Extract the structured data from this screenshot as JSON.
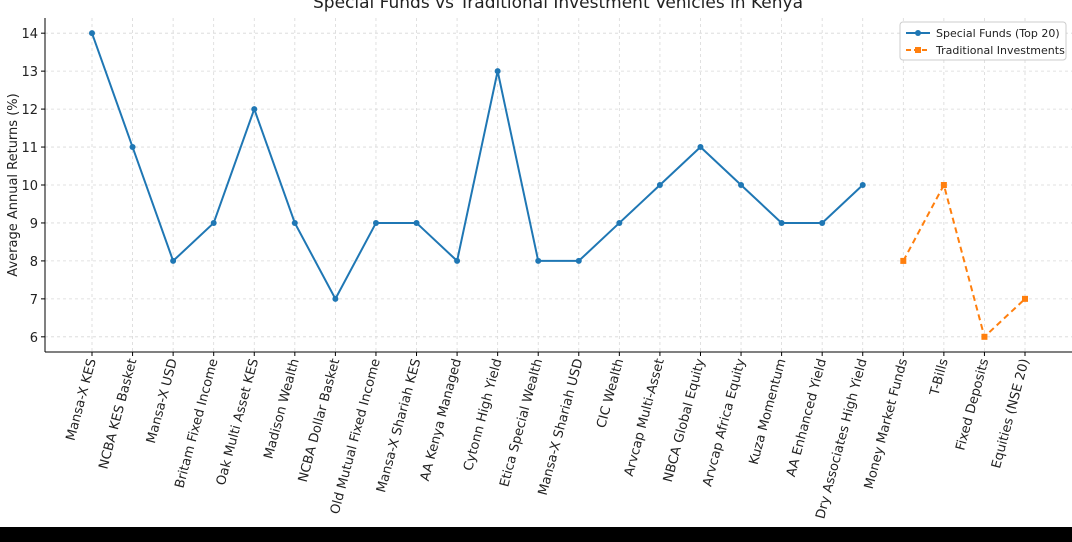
{
  "chart_data": {
    "type": "line",
    "title": "Special Funds vs Traditional Investment Vehicles in Kenya",
    "y_label": "Average Annual Returns (%)",
    "categories": [
      "Mansa-X KES",
      "NCBA KES Basket",
      "Mansa-X USD",
      "Britam Fixed Income",
      "Oak Multi Asset KES",
      "Madison Wealth",
      "NCBA Dollar Basket",
      "Old Mutual Fixed Income",
      "Mansa-X Shariah KES",
      "AA Kenya Managed",
      "Cytonn High Yield",
      "Etica Special Wealth",
      "Mansa-X Shariah USD",
      "CIC Wealth",
      "Arvcap Multi-Asset",
      "NBCA Global Equity",
      "Arvcap Africa Equity",
      "Kuza Momentum",
      "AA Enhanced Yield",
      "Dry Associates High Yield",
      "Money Market Funds",
      "T-Bills",
      "Fixed Deposits",
      "Equities (NSE 20)"
    ],
    "series": [
      {
        "name": "Special Funds (Top 20)",
        "color": "#1f77b4",
        "marker": "circle",
        "dashed": false,
        "values": [
          14,
          11,
          8,
          9,
          12,
          9,
          7,
          9,
          9,
          8,
          13,
          8,
          8,
          9,
          10,
          11,
          10,
          9,
          9,
          10,
          null,
          null,
          null,
          null
        ]
      },
      {
        "name": "Traditional Investments",
        "color": "#ff7f0e",
        "marker": "square",
        "dashed": true,
        "values": [
          null,
          null,
          null,
          null,
          null,
          null,
          null,
          null,
          null,
          null,
          null,
          null,
          null,
          null,
          null,
          null,
          null,
          null,
          null,
          null,
          8,
          10,
          6,
          7
        ]
      }
    ],
    "ylim": [
      5.6,
      14.4
    ],
    "yticks": [
      6,
      7,
      8,
      9,
      10,
      11,
      12,
      13,
      14
    ],
    "grid": true,
    "legend": "upper right"
  }
}
